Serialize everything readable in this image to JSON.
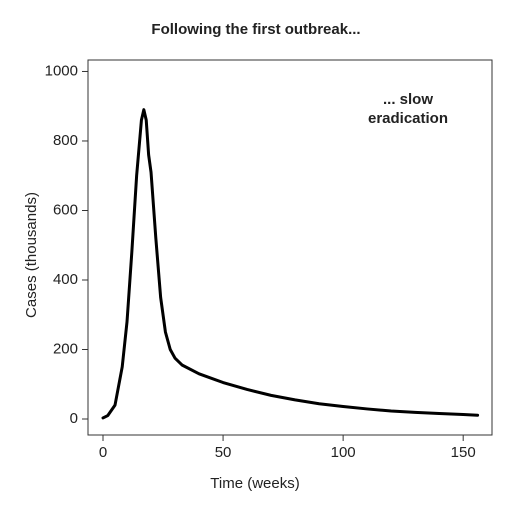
{
  "chart_data": {
    "type": "line",
    "title": "Following the first outbreak...",
    "x_label": "Time (weeks)",
    "y_label": "Cases (thousands)",
    "annotation": [
      "... slow",
      "eradication"
    ],
    "x": [
      0,
      2,
      5,
      8,
      10,
      12,
      14,
      16,
      17,
      18,
      19,
      20,
      22,
      24,
      26,
      28,
      30,
      33,
      40,
      50,
      60,
      70,
      80,
      90,
      100,
      110,
      120,
      130,
      140,
      150,
      156
    ],
    "values": [
      3,
      10,
      40,
      150,
      280,
      480,
      700,
      860,
      890,
      860,
      760,
      710,
      520,
      350,
      250,
      200,
      175,
      155,
      130,
      105,
      85,
      68,
      55,
      44,
      36,
      29,
      23,
      19,
      16,
      13,
      11
    ],
    "color": "#000000",
    "xlim": [
      -6.25,
      162
    ],
    "ylim": [
      -46,
      1033
    ],
    "xticks": [
      0,
      50,
      100,
      150
    ],
    "yticks": [
      0,
      200,
      400,
      600,
      800,
      1000
    ],
    "grid": false
  }
}
